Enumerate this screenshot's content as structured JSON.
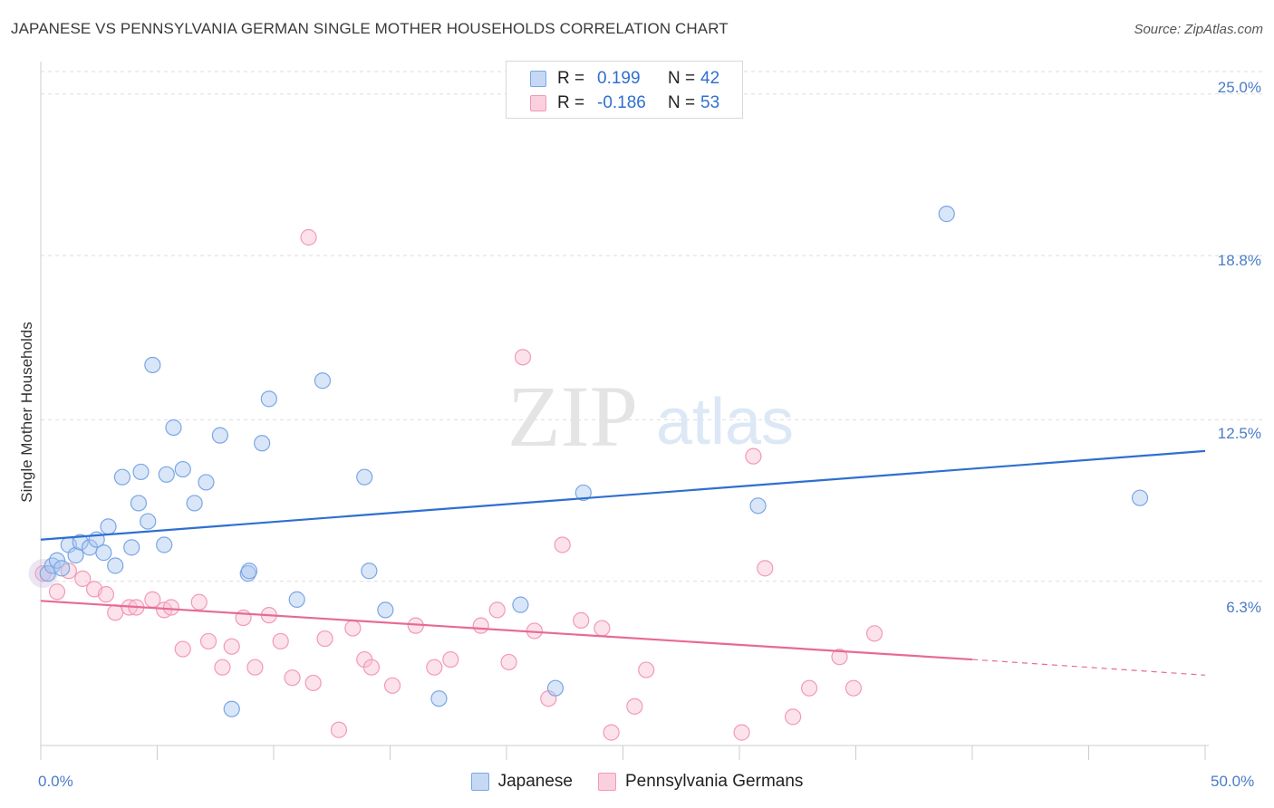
{
  "title": "JAPANESE VS PENNSYLVANIA GERMAN SINGLE MOTHER HOUSEHOLDS CORRELATION CHART",
  "source": "Source: ZipAtlas.com",
  "watermark": {
    "zip": "ZIP",
    "atlas": "atlas"
  },
  "legend": {
    "rows": [
      {
        "r_label": "R =",
        "r_value": "0.199",
        "n_label": "N =",
        "n_value": "42",
        "color": "#7aa6e6"
      },
      {
        "r_label": "R =",
        "r_value": "-0.186",
        "n_label": "N =",
        "n_value": "53",
        "color": "#f29ab5"
      }
    ]
  },
  "bottom_legend": {
    "japanese": "Japanese",
    "pennsylvania": "Pennsylvania Germans"
  },
  "chart_data": {
    "type": "scatter",
    "title": "JAPANESE VS PENNSYLVANIA GERMAN SINGLE MOTHER HOUSEHOLDS CORRELATION CHART",
    "xlabel": "",
    "ylabel": "Single Mother Households",
    "xlim": [
      0,
      50
    ],
    "ylim": [
      0,
      26
    ],
    "x_tick_labels": [
      "0.0%",
      "50.0%"
    ],
    "y_ticks": [
      6.3,
      12.5,
      18.8,
      25.0
    ],
    "y_tick_labels": [
      "6.3%",
      "12.5%",
      "18.8%",
      "25.0%"
    ],
    "grid": "horizontal dashed",
    "series": [
      {
        "name": "Japanese",
        "color": "#7aa6e6",
        "trend": {
          "x": [
            0,
            50
          ],
          "y": [
            7.9,
            11.3
          ]
        },
        "points": [
          [
            0.3,
            6.6
          ],
          [
            0.5,
            6.9
          ],
          [
            0.7,
            7.1
          ],
          [
            0.9,
            6.8
          ],
          [
            1.2,
            7.7
          ],
          [
            1.5,
            7.3
          ],
          [
            1.7,
            7.8
          ],
          [
            2.1,
            7.6
          ],
          [
            2.4,
            7.9
          ],
          [
            2.7,
            7.4
          ],
          [
            2.9,
            8.4
          ],
          [
            3.2,
            6.9
          ],
          [
            3.5,
            10.3
          ],
          [
            3.9,
            7.6
          ],
          [
            4.2,
            9.3
          ],
          [
            4.3,
            10.5
          ],
          [
            4.6,
            8.6
          ],
          [
            4.8,
            14.6
          ],
          [
            5.3,
            7.7
          ],
          [
            5.4,
            10.4
          ],
          [
            5.7,
            12.2
          ],
          [
            6.1,
            10.6
          ],
          [
            6.6,
            9.3
          ],
          [
            7.1,
            10.1
          ],
          [
            7.7,
            11.9
          ],
          [
            8.2,
            1.4
          ],
          [
            8.9,
            6.6
          ],
          [
            8.95,
            6.7
          ],
          [
            9.5,
            11.6
          ],
          [
            9.8,
            13.3
          ],
          [
            11.0,
            5.6
          ],
          [
            12.1,
            14.0
          ],
          [
            13.9,
            10.3
          ],
          [
            14.1,
            6.7
          ],
          [
            14.8,
            5.2
          ],
          [
            17.1,
            1.8
          ],
          [
            20.6,
            5.4
          ],
          [
            22.1,
            2.2
          ],
          [
            23.3,
            9.7
          ],
          [
            30.8,
            9.2
          ],
          [
            38.9,
            20.4
          ],
          [
            47.2,
            9.5
          ]
        ]
      },
      {
        "name": "Pennsylvania Germans",
        "color": "#f29ab5",
        "trend": {
          "x": [
            0,
            40
          ],
          "y": [
            5.55,
            3.3
          ]
        },
        "trend_dashed": {
          "x": [
            40,
            50
          ],
          "y": [
            3.3,
            2.7
          ]
        },
        "points": [
          [
            0.1,
            6.6
          ],
          [
            0.7,
            5.9
          ],
          [
            1.2,
            6.7
          ],
          [
            1.8,
            6.4
          ],
          [
            2.3,
            6.0
          ],
          [
            2.8,
            5.8
          ],
          [
            3.2,
            5.1
          ],
          [
            3.8,
            5.3
          ],
          [
            4.1,
            5.3
          ],
          [
            4.8,
            5.6
          ],
          [
            5.3,
            5.2
          ],
          [
            5.6,
            5.3
          ],
          [
            6.1,
            3.7
          ],
          [
            6.8,
            5.5
          ],
          [
            7.2,
            4.0
          ],
          [
            7.8,
            3.0
          ],
          [
            8.2,
            3.8
          ],
          [
            8.7,
            4.9
          ],
          [
            9.2,
            3.0
          ],
          [
            9.8,
            5.0
          ],
          [
            10.3,
            4.0
          ],
          [
            10.8,
            2.6
          ],
          [
            11.5,
            19.5
          ],
          [
            11.7,
            2.4
          ],
          [
            12.2,
            4.1
          ],
          [
            12.8,
            0.6
          ],
          [
            13.4,
            4.5
          ],
          [
            13.9,
            3.3
          ],
          [
            14.2,
            3.0
          ],
          [
            15.1,
            2.3
          ],
          [
            16.1,
            4.6
          ],
          [
            16.9,
            3.0
          ],
          [
            17.6,
            3.3
          ],
          [
            18.9,
            4.6
          ],
          [
            19.6,
            5.2
          ],
          [
            20.1,
            3.2
          ],
          [
            20.7,
            14.9
          ],
          [
            21.2,
            4.4
          ],
          [
            21.8,
            1.8
          ],
          [
            22.4,
            7.7
          ],
          [
            23.2,
            4.8
          ],
          [
            24.1,
            4.5
          ],
          [
            24.5,
            0.5
          ],
          [
            25.5,
            1.5
          ],
          [
            26.0,
            2.9
          ],
          [
            30.1,
            0.5
          ],
          [
            30.6,
            11.1
          ],
          [
            31.1,
            6.8
          ],
          [
            32.3,
            1.1
          ],
          [
            33.0,
            2.2
          ],
          [
            34.3,
            3.4
          ],
          [
            34.9,
            2.2
          ],
          [
            35.8,
            4.3
          ]
        ]
      }
    ]
  }
}
